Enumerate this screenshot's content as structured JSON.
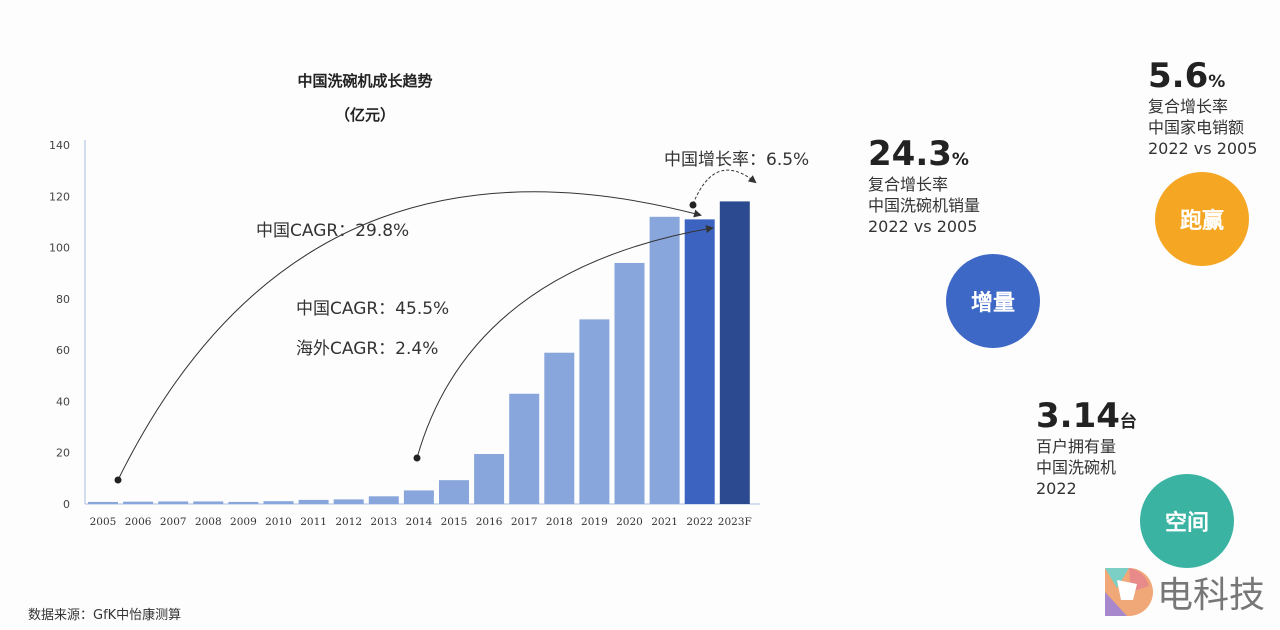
{
  "chart_data": {
    "type": "bar",
    "title": "中国洗碗机成长趋势",
    "subtitle": "（亿元）",
    "categories": [
      "2005",
      "2006",
      "2007",
      "2008",
      "2009",
      "2010",
      "2011",
      "2012",
      "2013",
      "2014",
      "2015",
      "2016",
      "2017",
      "2018",
      "2019",
      "2020",
      "2021",
      "2022",
      "2023F"
    ],
    "values": [
      0.8,
      0.9,
      1.0,
      1.0,
      0.8,
      1.1,
      1.6,
      1.8,
      3.0,
      5.3,
      9.3,
      19.5,
      43,
      59,
      72,
      94,
      112,
      111,
      118
    ],
    "bar_colors": {
      "default": "#88a6dc",
      "2022": "#3d63c0",
      "2023F": "#2b4a8f"
    },
    "ylim": [
      0,
      140
    ],
    "yticks": [
      0,
      20,
      40,
      60,
      80,
      100,
      120,
      140
    ],
    "xlabel": "",
    "ylabel": "",
    "annotations": [
      "中国CAGR：29.8%",
      "中国CAGR：45.5%",
      "海外CAGR：2.4%",
      "中国增长率：6.5%"
    ]
  },
  "stats": [
    {
      "value": "24.3",
      "unit": "%",
      "lines": [
        "复合增长率",
        "中国洗碗机销量",
        "2022 vs 2005"
      ],
      "badge": "增量",
      "color": "#3e68c6"
    },
    {
      "value": "5.6",
      "unit": "%",
      "lines": [
        "复合增长率",
        "中国家电销额",
        "2022 vs 2005"
      ],
      "badge": "跑赢",
      "color": "#f5a623"
    },
    {
      "value": "3.14",
      "unit": "台",
      "lines": [
        "百户拥有量",
        "中国洗碗机",
        "2022"
      ],
      "badge": "空间",
      "color": "#3bb3a3"
    }
  ],
  "source": "数据来源：GfK中怡康测算",
  "logo_text": "电科技"
}
